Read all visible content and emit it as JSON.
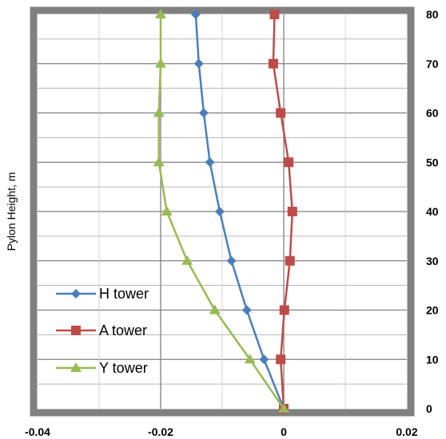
{
  "chart_data": {
    "type": "line",
    "title": "",
    "xlabel": "",
    "ylabel": "Pylon Height, m",
    "xlim": [
      -0.04,
      0.02
    ],
    "ylim": [
      0,
      80
    ],
    "x_ticks": [
      "-0.04",
      "-0.02",
      "0",
      "0.02"
    ],
    "y_ticks": [
      "0",
      "10",
      "20",
      "30",
      "40",
      "50",
      "60",
      "70",
      "80"
    ],
    "grid": true,
    "legend_position": "bottom-left",
    "series": [
      {
        "name": "H tower",
        "color": "#4a7ebb",
        "marker": "diamond",
        "points": [
          {
            "x": 0.0,
            "y": 0
          },
          {
            "x": -0.0032,
            "y": 10
          },
          {
            "x": -0.006,
            "y": 20
          },
          {
            "x": -0.0085,
            "y": 30
          },
          {
            "x": -0.0104,
            "y": 40
          },
          {
            "x": -0.012,
            "y": 50
          },
          {
            "x": -0.013,
            "y": 60
          },
          {
            "x": -0.0138,
            "y": 70
          },
          {
            "x": -0.0143,
            "y": 80
          }
        ]
      },
      {
        "name": "A tower",
        "color": "#be4b48",
        "marker": "square",
        "points": [
          {
            "x": 0.0,
            "y": 0
          },
          {
            "x": -0.0005,
            "y": 10
          },
          {
            "x": 0.0001,
            "y": 20
          },
          {
            "x": 0.001,
            "y": 30
          },
          {
            "x": 0.0014,
            "y": 40
          },
          {
            "x": 0.0008,
            "y": 50
          },
          {
            "x": -0.0005,
            "y": 60
          },
          {
            "x": -0.0017,
            "y": 70
          },
          {
            "x": -0.0015,
            "y": 80
          }
        ]
      },
      {
        "name": "Y tower",
        "color": "#98b954",
        "marker": "triangle",
        "points": [
          {
            "x": 0.0,
            "y": 0
          },
          {
            "x": -0.0055,
            "y": 10
          },
          {
            "x": -0.0112,
            "y": 20
          },
          {
            "x": -0.0157,
            "y": 30
          },
          {
            "x": -0.019,
            "y": 40
          },
          {
            "x": -0.0203,
            "y": 50
          },
          {
            "x": -0.0203,
            "y": 60
          },
          {
            "x": -0.02,
            "y": 70
          },
          {
            "x": -0.02,
            "y": 80
          }
        ]
      }
    ]
  }
}
